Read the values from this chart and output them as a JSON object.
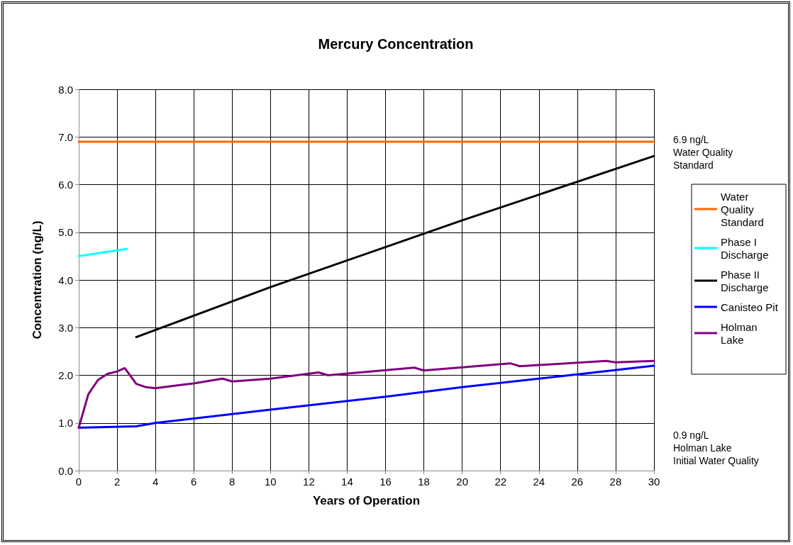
{
  "chart_data": {
    "type": "line",
    "title": "Mercury Concentration",
    "xlabel": "Years of Operation",
    "ylabel": "Concentration (ng/L)",
    "xlim": [
      0,
      30
    ],
    "xticks": [
      0,
      2,
      4,
      6,
      8,
      10,
      12,
      14,
      16,
      18,
      20,
      22,
      24,
      26,
      28,
      30
    ],
    "ylim": [
      0,
      8
    ],
    "yticks": [
      {
        "value": 0,
        "label": "0.0"
      },
      {
        "value": 1,
        "label": "1.0"
      },
      {
        "value": 2,
        "label": "2.0"
      },
      {
        "value": 3,
        "label": "3.0"
      },
      {
        "value": 4,
        "label": "4.0"
      },
      {
        "value": 5,
        "label": "5.0"
      },
      {
        "value": 6,
        "label": "6.0"
      },
      {
        "value": 7,
        "label": "7.0"
      },
      {
        "value": 8,
        "label": "8.0"
      }
    ],
    "grid": true,
    "legend": "right",
    "marker": "none",
    "line_style": "solid",
    "series": [
      {
        "name": "Water Quality Standard",
        "color": "#ff6600",
        "x": [
          0,
          30
        ],
        "values": [
          6.9,
          6.9
        ]
      },
      {
        "name": "Phase I Discharge",
        "color": "#00ffff",
        "x": [
          0,
          2.5
        ],
        "values": [
          4.5,
          4.65
        ]
      },
      {
        "name": "Phase II Discharge",
        "color": "#000000",
        "x": [
          3,
          10,
          20,
          30
        ],
        "values": [
          2.8,
          3.85,
          5.25,
          6.6
        ]
      },
      {
        "name": "Canisteo Pit",
        "color": "#0000ff",
        "x": [
          0,
          3,
          4,
          10,
          16,
          20,
          26,
          30
        ],
        "values": [
          0.9,
          0.93,
          1.0,
          1.28,
          1.55,
          1.75,
          2.02,
          2.2
        ]
      },
      {
        "name": "Holman Lake",
        "color": "#800080",
        "x": [
          0,
          0.5,
          1,
          1.5,
          2,
          2.4,
          3,
          3.5,
          4,
          6,
          7.5,
          8,
          10,
          12.5,
          13,
          17.5,
          18,
          22.5,
          23,
          27.5,
          28,
          30
        ],
        "values": [
          0.9,
          1.6,
          1.9,
          2.03,
          2.08,
          2.15,
          1.82,
          1.75,
          1.73,
          1.83,
          1.93,
          1.87,
          1.93,
          2.06,
          2.0,
          2.16,
          2.1,
          2.25,
          2.19,
          2.3,
          2.27,
          2.3
        ]
      }
    ],
    "annotations": [
      {
        "text": "6.9 ng/L\nWater Quality\nStandard",
        "x": 30,
        "y": 6.9
      },
      "0.9 ng/L\nHolman Lake\nInitial Water Quality"
    ]
  }
}
